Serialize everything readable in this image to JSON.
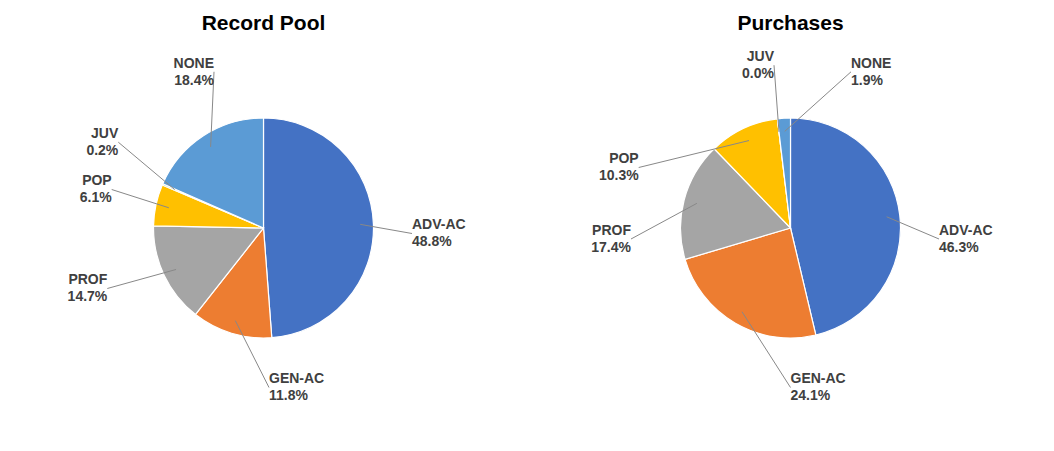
{
  "chart_data": [
    {
      "type": "pie",
      "title": "Record Pool",
      "categories": [
        "ADV-AC",
        "GEN-AC",
        "PROF",
        "POP",
        "JUV",
        "NONE"
      ],
      "values": [
        48.8,
        11.8,
        14.7,
        6.1,
        0.2,
        18.4
      ],
      "value_labels": [
        "48.8%",
        "11.8%",
        "14.7%",
        "6.1%",
        "0.2%",
        "18.4%"
      ],
      "colors": [
        "#4472C4",
        "#ED7D31",
        "#A5A5A5",
        "#FFC000",
        "#70AD47",
        "#5B9BD5"
      ]
    },
    {
      "type": "pie",
      "title": "Purchases",
      "categories": [
        "ADV-AC",
        "GEN-AC",
        "PROF",
        "POP",
        "JUV",
        "NONE"
      ],
      "values": [
        46.3,
        24.1,
        17.4,
        10.3,
        0.0,
        1.9
      ],
      "value_labels": [
        "46.3%",
        "24.1%",
        "17.4%",
        "10.3%",
        "0.0%",
        "1.9%"
      ],
      "colors": [
        "#4472C4",
        "#ED7D31",
        "#A5A5A5",
        "#FFC000",
        "#70AD47",
        "#5B9BD5"
      ]
    }
  ]
}
